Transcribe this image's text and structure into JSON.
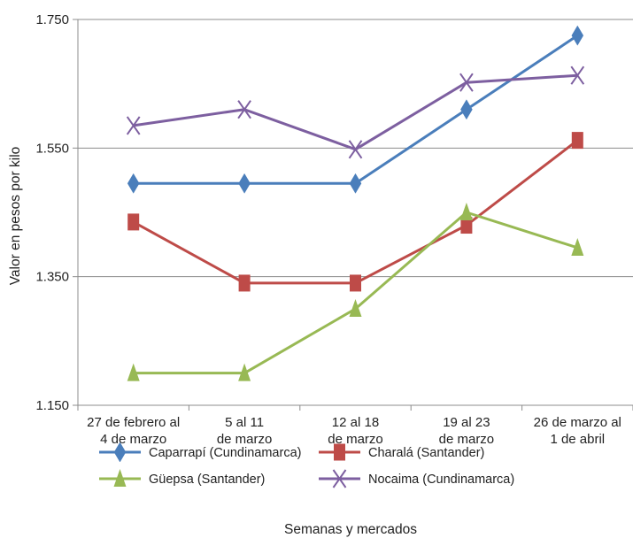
{
  "chart_data": {
    "type": "line",
    "title": "",
    "xlabel": "Semanas y mercados",
    "ylabel": "Valor en pesos por kilo",
    "ylim": [
      1150,
      1750
    ],
    "yticks": [
      "1.150",
      "1.350",
      "1.550",
      "1.750"
    ],
    "ytick_values": [
      1150,
      1350,
      1550,
      1750
    ],
    "grid": true,
    "legend_position": "bottom",
    "categories": [
      [
        "27 de febrero al",
        "4 de marzo"
      ],
      [
        "5 al 11",
        "de marzo"
      ],
      [
        "12 al 18",
        "de marzo"
      ],
      [
        "19 al 23",
        "de marzo"
      ],
      [
        "26 de marzo al",
        "1 de abril"
      ]
    ],
    "series": [
      {
        "name": "Caparrapí (Cundinamarca)",
        "color": "#4a7ebb",
        "marker": "diamond",
        "values": [
          1495,
          1495,
          1495,
          1610,
          1725
        ]
      },
      {
        "name": "Charalá (Santander)",
        "color": "#be4b48",
        "marker": "square",
        "values": [
          1435,
          1340,
          1340,
          1430,
          1562
        ]
      },
      {
        "name": "Güepsa (Santander)",
        "color": "#98b954",
        "marker": "triangle",
        "values": [
          1200,
          1200,
          1300,
          1450,
          1395
        ]
      },
      {
        "name": "Nocaima (Cundinamarca)",
        "color": "#7d5fa0",
        "marker": "x",
        "values": [
          1585,
          1610,
          1548,
          1652,
          1663
        ]
      }
    ]
  }
}
